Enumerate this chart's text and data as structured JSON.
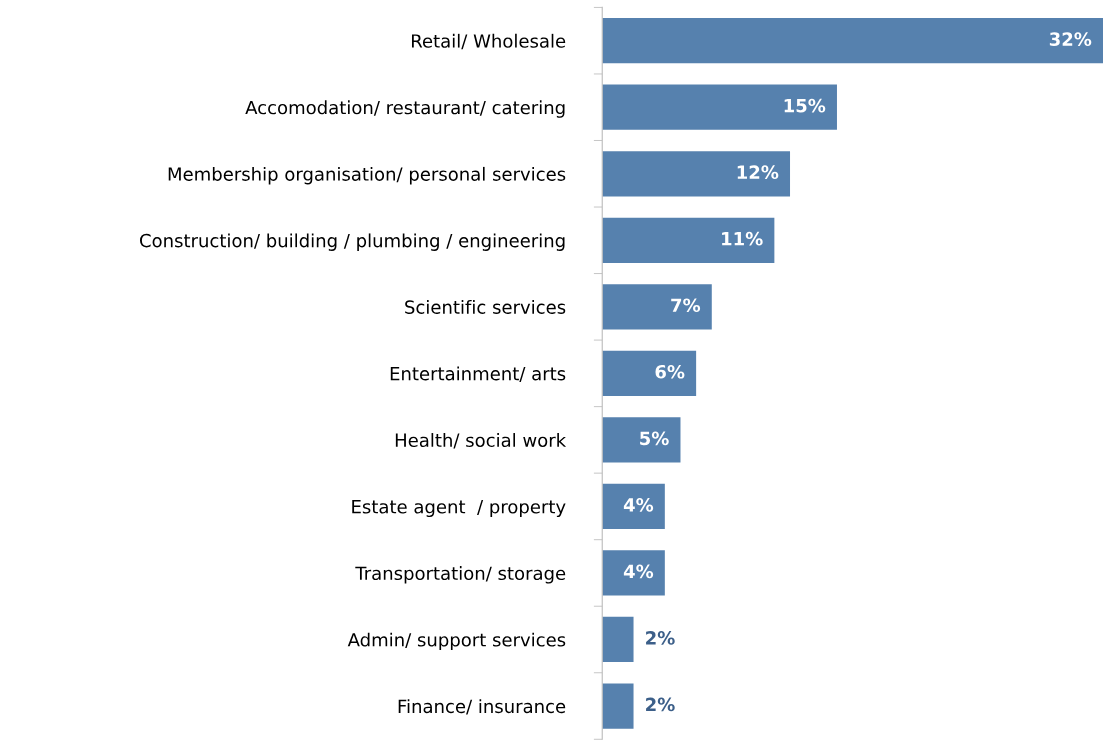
{
  "chart_data": {
    "type": "bar",
    "orientation": "horizontal",
    "categories": [
      "Retail/ Wholesale",
      "Accomodation/ restaurant/ catering",
      "Membership organisation/ personal services",
      "Construction/ building / plumbing / engineering",
      "Scientific services",
      "Entertainment/ arts",
      "Health/ social work",
      "Estate agent  / property",
      "Transportation/ storage",
      "Admin/ support services",
      "Finance/ insurance"
    ],
    "values": [
      32,
      15,
      12,
      11,
      7,
      6,
      5,
      4,
      4,
      2,
      2
    ],
    "value_labels": [
      "32%",
      "15%",
      "12%",
      "11%",
      "7%",
      "6%",
      "5%",
      "4%",
      "4%",
      "2%",
      "2%"
    ],
    "color": "#5681ae",
    "xlim": [
      0,
      32
    ],
    "grid": false,
    "legend": false
  }
}
